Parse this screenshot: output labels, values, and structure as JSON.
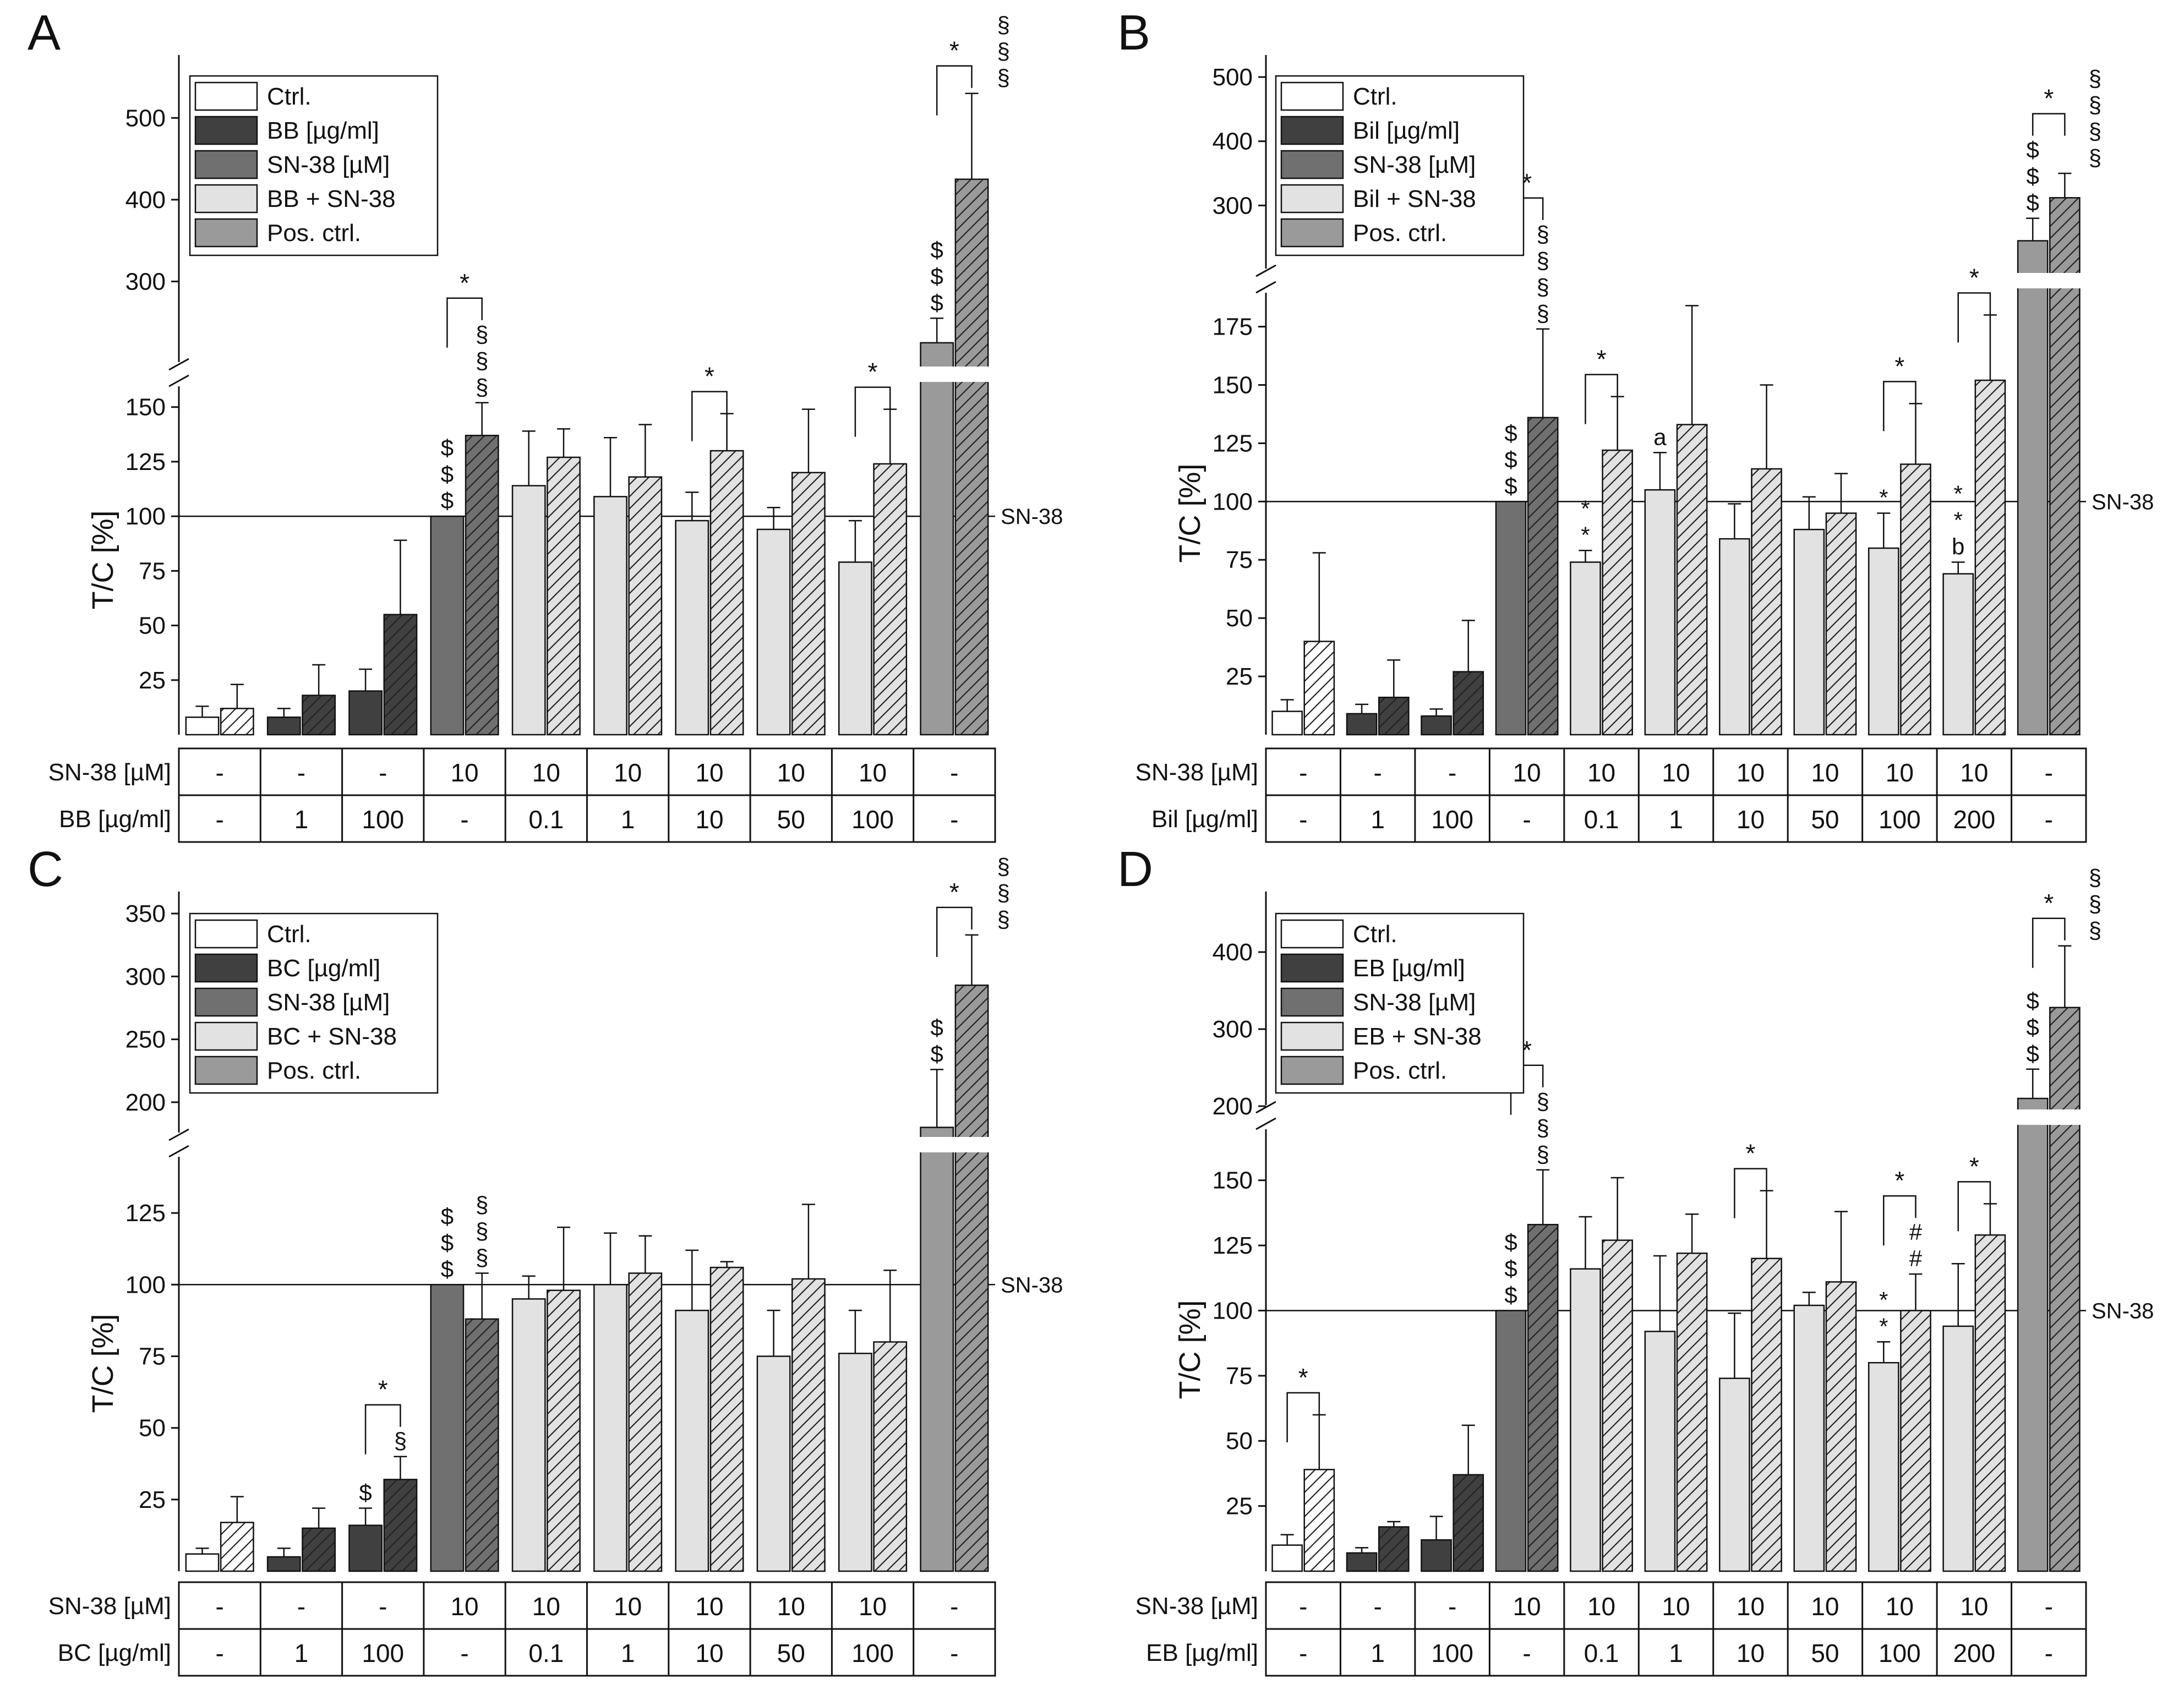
{
  "y_axis_label": "T/C [%]",
  "reference_line_label": "SN-38",
  "sn38_row_label": "SN-38 [µM]",
  "sig_star": "*",
  "chart_data": [
    {
      "panel": "A",
      "type": "bar",
      "agent": "BB",
      "legend": [
        "Ctrl.",
        "BB [µg/ml]",
        "SN-38 [µM]",
        "BB + SN-38",
        "Pos. ctrl."
      ],
      "ylabel": "T/C [%]",
      "lower_ticks": [
        "25",
        "50",
        "75",
        "100",
        "125",
        "150"
      ],
      "upper_ticks": [
        "300",
        "400",
        "500"
      ],
      "lower_max": 160,
      "upper_range": [
        200,
        550
      ],
      "reference_value": 100,
      "row2_label": "BB [µg/ml]",
      "sn38_row": [
        "-",
        "-",
        "-",
        "10",
        "10",
        "10",
        "10",
        "10",
        "10",
        "-"
      ],
      "agent_row": [
        "-",
        "1",
        "100",
        "-",
        "0.1",
        "1",
        "10",
        "50",
        "100",
        "-"
      ],
      "groups": [
        {
          "kind": "ctrl",
          "solid": 8,
          "solid_err": 5,
          "hatched": 12,
          "hatched_err": 11
        },
        {
          "kind": "agent",
          "solid": 8,
          "solid_err": 4,
          "hatched": 18,
          "hatched_err": 14
        },
        {
          "kind": "agent",
          "solid": 20,
          "solid_err": 10,
          "hatched": 55,
          "hatched_err": 34
        },
        {
          "kind": "sn38",
          "solid": 100,
          "solid_err": 0,
          "hatched": 137,
          "hatched_err": 15,
          "solid_ann": [
            "$",
            "$",
            "$"
          ],
          "hatched_ann": [
            "§",
            "§",
            "§"
          ],
          "star": true
        },
        {
          "kind": "combo",
          "solid": 114,
          "solid_err": 25,
          "hatched": 127,
          "hatched_err": 13
        },
        {
          "kind": "combo",
          "solid": 109,
          "solid_err": 27,
          "hatched": 118,
          "hatched_err": 24
        },
        {
          "kind": "combo",
          "solid": 98,
          "solid_err": 13,
          "hatched": 130,
          "hatched_err": 17,
          "star": true
        },
        {
          "kind": "combo",
          "solid": 94,
          "solid_err": 10,
          "hatched": 120,
          "hatched_err": 29
        },
        {
          "kind": "combo",
          "solid": 79,
          "solid_err": 19,
          "hatched": 124,
          "hatched_err": 25,
          "star": true
        },
        {
          "kind": "pos",
          "solid": 225,
          "solid_err": 30,
          "hatched": 425,
          "hatched_err": 105,
          "solid_ann": [
            "$",
            "$",
            "$"
          ],
          "hatched_ann": [
            "§",
            "§",
            "§"
          ],
          "star": true
        }
      ]
    },
    {
      "panel": "B",
      "type": "bar",
      "agent": "Bil",
      "legend": [
        "Ctrl.",
        "Bil [µg/ml]",
        "SN-38 [µM]",
        "Bil + SN-38",
        "Pos. ctrl."
      ],
      "ylabel": "T/C [%]",
      "lower_ticks": [
        "25",
        "50",
        "75",
        "100",
        "125",
        "150",
        "175"
      ],
      "upper_ticks": [
        "300",
        "400",
        "500"
      ],
      "lower_max": 190,
      "upper_range": [
        200,
        500
      ],
      "reference_value": 100,
      "row2_label": "Bil [µg/ml]",
      "sn38_row": [
        "-",
        "-",
        "-",
        "10",
        "10",
        "10",
        "10",
        "10",
        "10",
        "10",
        "-"
      ],
      "agent_row": [
        "-",
        "1",
        "100",
        "-",
        "0.1",
        "1",
        "10",
        "50",
        "100",
        "200",
        "-"
      ],
      "groups": [
        {
          "kind": "ctrl",
          "solid": 10,
          "solid_err": 5,
          "hatched": 40,
          "hatched_err": 38
        },
        {
          "kind": "agent",
          "solid": 9,
          "solid_err": 4,
          "hatched": 16,
          "hatched_err": 16
        },
        {
          "kind": "agent",
          "solid": 8,
          "solid_err": 3,
          "hatched": 27,
          "hatched_err": 22
        },
        {
          "kind": "sn38",
          "solid": 100,
          "solid_err": 0,
          "hatched": 136,
          "hatched_err": 38,
          "solid_ann": [
            "$",
            "$",
            "$"
          ],
          "hatched_ann": [
            "§",
            "§",
            "§",
            "§"
          ],
          "star": true
        },
        {
          "kind": "combo",
          "solid": 74,
          "solid_err": 5,
          "hatched": 122,
          "hatched_err": 23,
          "solid_ann": [
            "*",
            "*"
          ],
          "star": true
        },
        {
          "kind": "combo",
          "solid": 105,
          "solid_err": 16,
          "hatched": 133,
          "hatched_err": 51,
          "solid_ann": [
            "a"
          ]
        },
        {
          "kind": "combo",
          "solid": 84,
          "solid_err": 15,
          "hatched": 114,
          "hatched_err": 36
        },
        {
          "kind": "combo",
          "solid": 88,
          "solid_err": 14,
          "hatched": 95,
          "hatched_err": 17
        },
        {
          "kind": "combo",
          "solid": 80,
          "solid_err": 15,
          "hatched": 116,
          "hatched_err": 26,
          "solid_ann": [
            "*"
          ],
          "star": true
        },
        {
          "kind": "combo",
          "solid": 69,
          "solid_err": 5,
          "hatched": 152,
          "hatched_err": 28,
          "solid_ann": [
            "*",
            "*",
            "b"
          ],
          "star": true
        },
        {
          "kind": "pos",
          "solid": 245,
          "solid_err": 35,
          "hatched": 312,
          "hatched_err": 38,
          "solid_ann": [
            "$",
            "$",
            "$"
          ],
          "hatched_ann": [
            "§",
            "§",
            "§",
            "§"
          ],
          "star": true
        }
      ]
    },
    {
      "panel": "C",
      "type": "bar",
      "agent": "BC",
      "legend": [
        "Ctrl.",
        "BC [µg/ml]",
        "SN-38 [µM]",
        "BC + SN-38",
        "Pos. ctrl."
      ],
      "ylabel": "T/C [%]",
      "lower_ticks": [
        "25",
        "50",
        "75",
        "100",
        "125"
      ],
      "upper_ticks": [
        "200",
        "250",
        "300",
        "350"
      ],
      "lower_max": 145,
      "upper_range": [
        175,
        350
      ],
      "reference_value": 100,
      "row2_label": "BC [µg/ml]",
      "sn38_row": [
        "-",
        "-",
        "-",
        "10",
        "10",
        "10",
        "10",
        "10",
        "10",
        "-"
      ],
      "agent_row": [
        "-",
        "1",
        "100",
        "-",
        "0.1",
        "1",
        "10",
        "50",
        "100",
        "-"
      ],
      "groups": [
        {
          "kind": "ctrl",
          "solid": 6,
          "solid_err": 2,
          "hatched": 17,
          "hatched_err": 9
        },
        {
          "kind": "agent",
          "solid": 5,
          "solid_err": 3,
          "hatched": 15,
          "hatched_err": 7
        },
        {
          "kind": "agent",
          "solid": 16,
          "solid_err": 6,
          "hatched": 32,
          "hatched_err": 8,
          "solid_ann": [
            "$"
          ],
          "hatched_ann": [
            "§"
          ],
          "star": true
        },
        {
          "kind": "sn38",
          "solid": 100,
          "solid_err": 0,
          "hatched": 88,
          "hatched_err": 16,
          "solid_ann": [
            "$",
            "$",
            "$"
          ],
          "hatched_ann": [
            "§",
            "§",
            "§"
          ]
        },
        {
          "kind": "combo",
          "solid": 95,
          "solid_err": 8,
          "hatched": 98,
          "hatched_err": 22
        },
        {
          "kind": "combo",
          "solid": 100,
          "solid_err": 18,
          "hatched": 104,
          "hatched_err": 13
        },
        {
          "kind": "combo",
          "solid": 91,
          "solid_err": 21,
          "hatched": 106,
          "hatched_err": 2
        },
        {
          "kind": "combo",
          "solid": 75,
          "solid_err": 16,
          "hatched": 102,
          "hatched_err": 26
        },
        {
          "kind": "combo",
          "solid": 76,
          "solid_err": 15,
          "hatched": 80,
          "hatched_err": 25
        },
        {
          "kind": "pos",
          "solid": 180,
          "solid_err": 46,
          "hatched": 293,
          "hatched_err": 40,
          "solid_ann": [
            "$",
            "$"
          ],
          "hatched_ann": [
            "§",
            "§",
            "§"
          ],
          "star": true
        }
      ]
    },
    {
      "panel": "D",
      "type": "bar",
      "agent": "EB",
      "legend": [
        "Ctrl.",
        "EB [µg/ml]",
        "SN-38 [µM]",
        "EB + SN-38",
        "Pos. ctrl."
      ],
      "ylabel": "T/C [%]",
      "lower_ticks": [
        "25",
        "50",
        "75",
        "100",
        "125",
        "150"
      ],
      "upper_ticks": [
        "200",
        "300",
        "400"
      ],
      "lower_max": 170,
      "upper_range": [
        200,
        450
      ],
      "reference_value": 100,
      "row2_label": "EB [µg/ml]",
      "sn38_row": [
        "-",
        "-",
        "-",
        "10",
        "10",
        "10",
        "10",
        "10",
        "10",
        "10",
        "-"
      ],
      "agent_row": [
        "-",
        "1",
        "100",
        "-",
        "0.1",
        "1",
        "10",
        "50",
        "100",
        "200",
        "-"
      ],
      "groups": [
        {
          "kind": "ctrl",
          "solid": 10,
          "solid_err": 4,
          "hatched": 39,
          "hatched_err": 21,
          "star": true
        },
        {
          "kind": "agent",
          "solid": 7,
          "solid_err": 2,
          "hatched": 17,
          "hatched_err": 2
        },
        {
          "kind": "agent",
          "solid": 12,
          "solid_err": 9,
          "hatched": 37,
          "hatched_err": 19
        },
        {
          "kind": "sn38",
          "solid": 100,
          "solid_err": 0,
          "hatched": 133,
          "hatched_err": 21,
          "solid_ann": [
            "$",
            "$",
            "$"
          ],
          "hatched_ann": [
            "§",
            "§",
            "§"
          ],
          "star": true
        },
        {
          "kind": "combo",
          "solid": 116,
          "solid_err": 20,
          "hatched": 127,
          "hatched_err": 24
        },
        {
          "kind": "combo",
          "solid": 92,
          "solid_err": 29,
          "hatched": 122,
          "hatched_err": 15
        },
        {
          "kind": "combo",
          "solid": 74,
          "solid_err": 25,
          "hatched": 120,
          "hatched_err": 26,
          "star": true
        },
        {
          "kind": "combo",
          "solid": 102,
          "solid_err": 5,
          "hatched": 111,
          "hatched_err": 27
        },
        {
          "kind": "combo",
          "solid": 80,
          "solid_err": 8,
          "hatched": 100,
          "hatched_err": 14,
          "solid_ann": [
            "*",
            "*"
          ],
          "hatched_ann": [
            "#",
            "#"
          ],
          "star": true
        },
        {
          "kind": "combo",
          "solid": 94,
          "solid_err": 24,
          "hatched": 129,
          "hatched_err": 12,
          "star": true
        },
        {
          "kind": "pos",
          "solid": 210,
          "solid_err": 38,
          "hatched": 328,
          "hatched_err": 80,
          "solid_ann": [
            "$",
            "$",
            "$"
          ],
          "hatched_ann": [
            "§",
            "§",
            "§"
          ],
          "star": true
        }
      ]
    }
  ],
  "colors": {
    "ctrl": "#ffffff",
    "agent": "#404040",
    "sn38": "#707070",
    "combo": "#e2e2e2",
    "pos": "#9a9a9a",
    "line": "#111111"
  }
}
